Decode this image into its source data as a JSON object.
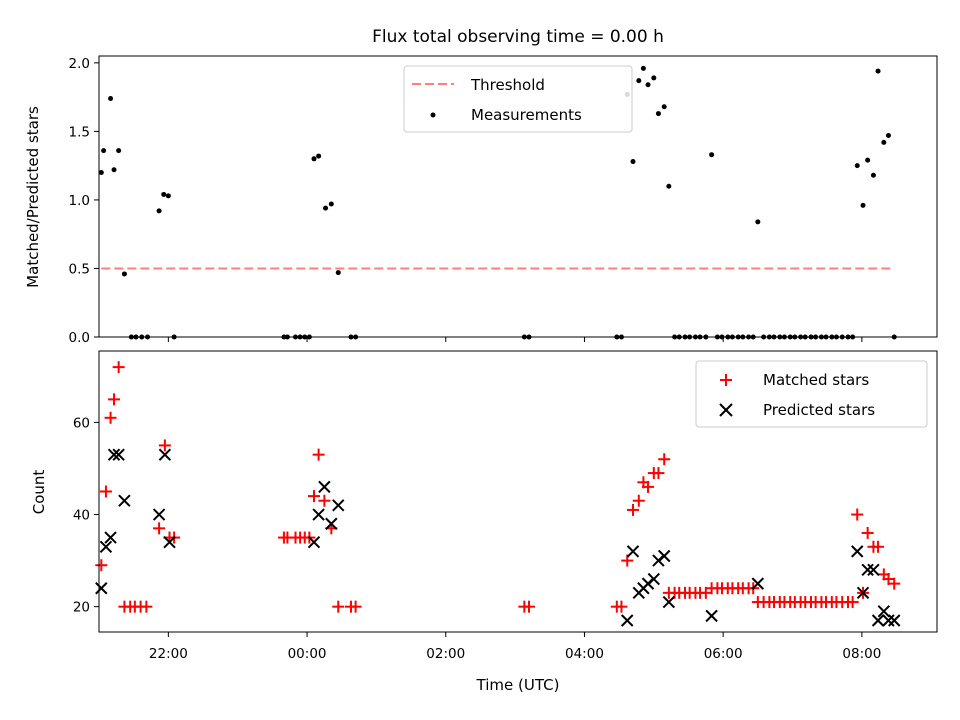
{
  "chart_data": [
    {
      "type": "scatter",
      "panel": "top",
      "title": "Flux total observing time = 0.00 h",
      "xlabel": "",
      "ylabel": "Matched/Predicted stars",
      "xlim": [
        "21:00",
        "09:05"
      ],
      "ylim": [
        0,
        2.05
      ],
      "yticks": [
        "0.0",
        "0.5",
        "1.0",
        "1.5",
        "2.0"
      ],
      "legend": {
        "position": "top-center"
      },
      "threshold": {
        "name": "Threshold",
        "value": 0.5,
        "x_start": "21:02",
        "x_end": "08:28",
        "color": "#ff7f7f",
        "style": "dashed"
      },
      "series": [
        {
          "name": "Measurements",
          "marker": "dot",
          "color": "#000000",
          "points": [
            [
              "21:02",
              1.2
            ],
            [
              "21:04",
              1.36
            ],
            [
              "21:10",
              1.74
            ],
            [
              "21:13",
              1.22
            ],
            [
              "21:17",
              1.36
            ],
            [
              "21:22",
              0.46
            ],
            [
              "21:28",
              0.0
            ],
            [
              "21:32",
              0.0
            ],
            [
              "21:37",
              0.0
            ],
            [
              "21:42",
              0.0
            ],
            [
              "21:52",
              0.92
            ],
            [
              "21:56",
              1.04
            ],
            [
              "22:00",
              1.03
            ],
            [
              "22:05",
              0.0
            ],
            [
              "23:40",
              0.0
            ],
            [
              "23:43",
              0.0
            ],
            [
              "23:50",
              0.0
            ],
            [
              "23:54",
              0.0
            ],
            [
              "23:58",
              0.0
            ],
            [
              "00:02",
              0.0
            ],
            [
              "00:06",
              1.3
            ],
            [
              "00:10",
              1.32
            ],
            [
              "00:16",
              0.94
            ],
            [
              "00:21",
              0.97
            ],
            [
              "00:27",
              0.47
            ],
            [
              "00:38",
              0.0
            ],
            [
              "00:42",
              0.0
            ],
            [
              "03:08",
              0.0
            ],
            [
              "03:12",
              0.0
            ],
            [
              "04:28",
              0.0
            ],
            [
              "04:32",
              0.0
            ],
            [
              "04:37",
              1.77
            ],
            [
              "04:42",
              1.28
            ],
            [
              "04:47",
              1.87
            ],
            [
              "04:51",
              1.96
            ],
            [
              "04:55",
              1.84
            ],
            [
              "05:00",
              1.89
            ],
            [
              "05:04",
              1.63
            ],
            [
              "05:09",
              1.68
            ],
            [
              "05:13",
              1.1
            ],
            [
              "05:18",
              0.0
            ],
            [
              "05:22",
              0.0
            ],
            [
              "05:27",
              0.0
            ],
            [
              "05:31",
              0.0
            ],
            [
              "05:36",
              0.0
            ],
            [
              "05:40",
              0.0
            ],
            [
              "05:45",
              0.0
            ],
            [
              "05:50",
              1.33
            ],
            [
              "05:55",
              0.0
            ],
            [
              "05:59",
              0.0
            ],
            [
              "06:04",
              0.0
            ],
            [
              "06:08",
              0.0
            ],
            [
              "06:13",
              0.0
            ],
            [
              "06:17",
              0.0
            ],
            [
              "06:22",
              0.0
            ],
            [
              "06:26",
              0.0
            ],
            [
              "06:30",
              0.84
            ],
            [
              "06:35",
              0.0
            ],
            [
              "06:40",
              0.0
            ],
            [
              "06:44",
              0.0
            ],
            [
              "06:49",
              0.0
            ],
            [
              "06:53",
              0.0
            ],
            [
              "06:58",
              0.0
            ],
            [
              "07:02",
              0.0
            ],
            [
              "07:07",
              0.0
            ],
            [
              "07:11",
              0.0
            ],
            [
              "07:16",
              0.0
            ],
            [
              "07:20",
              0.0
            ],
            [
              "07:25",
              0.0
            ],
            [
              "07:29",
              0.0
            ],
            [
              "07:34",
              0.0
            ],
            [
              "07:38",
              0.0
            ],
            [
              "07:43",
              0.0
            ],
            [
              "07:48",
              0.0
            ],
            [
              "07:52",
              0.0
            ],
            [
              "07:56",
              1.25
            ],
            [
              "08:01",
              0.96
            ],
            [
              "08:05",
              1.29
            ],
            [
              "08:10",
              1.18
            ],
            [
              "08:14",
              1.94
            ],
            [
              "08:19",
              1.42
            ],
            [
              "08:23",
              1.47
            ],
            [
              "08:28",
              0.0
            ]
          ]
        }
      ]
    },
    {
      "type": "scatter",
      "panel": "bottom",
      "title": "",
      "xlabel": "Time (UTC)",
      "ylabel": "Count",
      "xlim": [
        "21:00",
        "09:05"
      ],
      "ylim": [
        14.5,
        75.5
      ],
      "xticks": [
        "22:00",
        "00:00",
        "02:00",
        "04:00",
        "06:00",
        "08:00"
      ],
      "yticks": [
        "20",
        "40",
        "60"
      ],
      "legend": {
        "position": "top-right"
      },
      "series": [
        {
          "name": "Matched stars",
          "marker": "plus",
          "color": "#ff0000",
          "points": [
            [
              "21:02",
              29
            ],
            [
              "21:06",
              45
            ],
            [
              "21:10",
              61
            ],
            [
              "21:13",
              65
            ],
            [
              "21:17",
              72
            ],
            [
              "21:22",
              20
            ],
            [
              "21:27",
              20
            ],
            [
              "21:31",
              20
            ],
            [
              "21:36",
              20
            ],
            [
              "21:41",
              20
            ],
            [
              "21:52",
              37
            ],
            [
              "21:57",
              55
            ],
            [
              "22:01",
              35
            ],
            [
              "22:05",
              35
            ],
            [
              "23:40",
              35
            ],
            [
              "23:43",
              35
            ],
            [
              "23:50",
              35
            ],
            [
              "23:54",
              35
            ],
            [
              "23:58",
              35
            ],
            [
              "00:02",
              35
            ],
            [
              "00:06",
              44
            ],
            [
              "00:10",
              53
            ],
            [
              "00:15",
              43
            ],
            [
              "00:21",
              37
            ],
            [
              "00:27",
              20
            ],
            [
              "00:38",
              20
            ],
            [
              "00:42",
              20
            ],
            [
              "03:08",
              20
            ],
            [
              "03:12",
              20
            ],
            [
              "04:28",
              20
            ],
            [
              "04:32",
              20
            ],
            [
              "04:37",
              30
            ],
            [
              "04:42",
              41
            ],
            [
              "04:47",
              43
            ],
            [
              "04:51",
              47
            ],
            [
              "04:55",
              46
            ],
            [
              "05:00",
              49
            ],
            [
              "05:04",
              49
            ],
            [
              "05:09",
              52
            ],
            [
              "05:13",
              23
            ],
            [
              "05:18",
              23
            ],
            [
              "05:22",
              23
            ],
            [
              "05:27",
              23
            ],
            [
              "05:31",
              23
            ],
            [
              "05:36",
              23
            ],
            [
              "05:40",
              23
            ],
            [
              "05:45",
              23
            ],
            [
              "05:50",
              24
            ],
            [
              "05:55",
              24
            ],
            [
              "05:59",
              24
            ],
            [
              "06:04",
              24
            ],
            [
              "06:08",
              24
            ],
            [
              "06:13",
              24
            ],
            [
              "06:17",
              24
            ],
            [
              "06:22",
              24
            ],
            [
              "06:26",
              24
            ],
            [
              "06:30",
              21
            ],
            [
              "06:35",
              21
            ],
            [
              "06:40",
              21
            ],
            [
              "06:44",
              21
            ],
            [
              "06:49",
              21
            ],
            [
              "06:53",
              21
            ],
            [
              "06:58",
              21
            ],
            [
              "07:02",
              21
            ],
            [
              "07:07",
              21
            ],
            [
              "07:11",
              21
            ],
            [
              "07:16",
              21
            ],
            [
              "07:20",
              21
            ],
            [
              "07:25",
              21
            ],
            [
              "07:29",
              21
            ],
            [
              "07:34",
              21
            ],
            [
              "07:38",
              21
            ],
            [
              "07:43",
              21
            ],
            [
              "07:48",
              21
            ],
            [
              "07:52",
              21
            ],
            [
              "07:56",
              40
            ],
            [
              "08:01",
              23
            ],
            [
              "08:05",
              36
            ],
            [
              "08:10",
              33
            ],
            [
              "08:14",
              33
            ],
            [
              "08:19",
              27
            ],
            [
              "08:23",
              26
            ],
            [
              "08:28",
              25
            ]
          ]
        },
        {
          "name": "Predicted stars",
          "marker": "x",
          "color": "#000000",
          "points": [
            [
              "21:02",
              24
            ],
            [
              "21:06",
              33
            ],
            [
              "21:10",
              35
            ],
            [
              "21:13",
              53
            ],
            [
              "21:17",
              53
            ],
            [
              "21:22",
              43
            ],
            [
              "21:52",
              40
            ],
            [
              "21:57",
              53
            ],
            [
              "22:01",
              34
            ],
            [
              "00:06",
              34
            ],
            [
              "00:10",
              40
            ],
            [
              "00:15",
              46
            ],
            [
              "00:21",
              38
            ],
            [
              "00:27",
              42
            ],
            [
              "04:37",
              17
            ],
            [
              "04:42",
              32
            ],
            [
              "04:47",
              23
            ],
            [
              "04:51",
              24
            ],
            [
              "04:55",
              25
            ],
            [
              "05:00",
              26
            ],
            [
              "05:04",
              30
            ],
            [
              "05:09",
              31
            ],
            [
              "05:13",
              21
            ],
            [
              "05:50",
              18
            ],
            [
              "06:30",
              25
            ],
            [
              "07:56",
              32
            ],
            [
              "08:01",
              23
            ],
            [
              "08:05",
              28
            ],
            [
              "08:10",
              28
            ],
            [
              "08:14",
              17
            ],
            [
              "08:19",
              19
            ],
            [
              "08:23",
              17
            ],
            [
              "08:28",
              17
            ]
          ]
        }
      ]
    }
  ]
}
